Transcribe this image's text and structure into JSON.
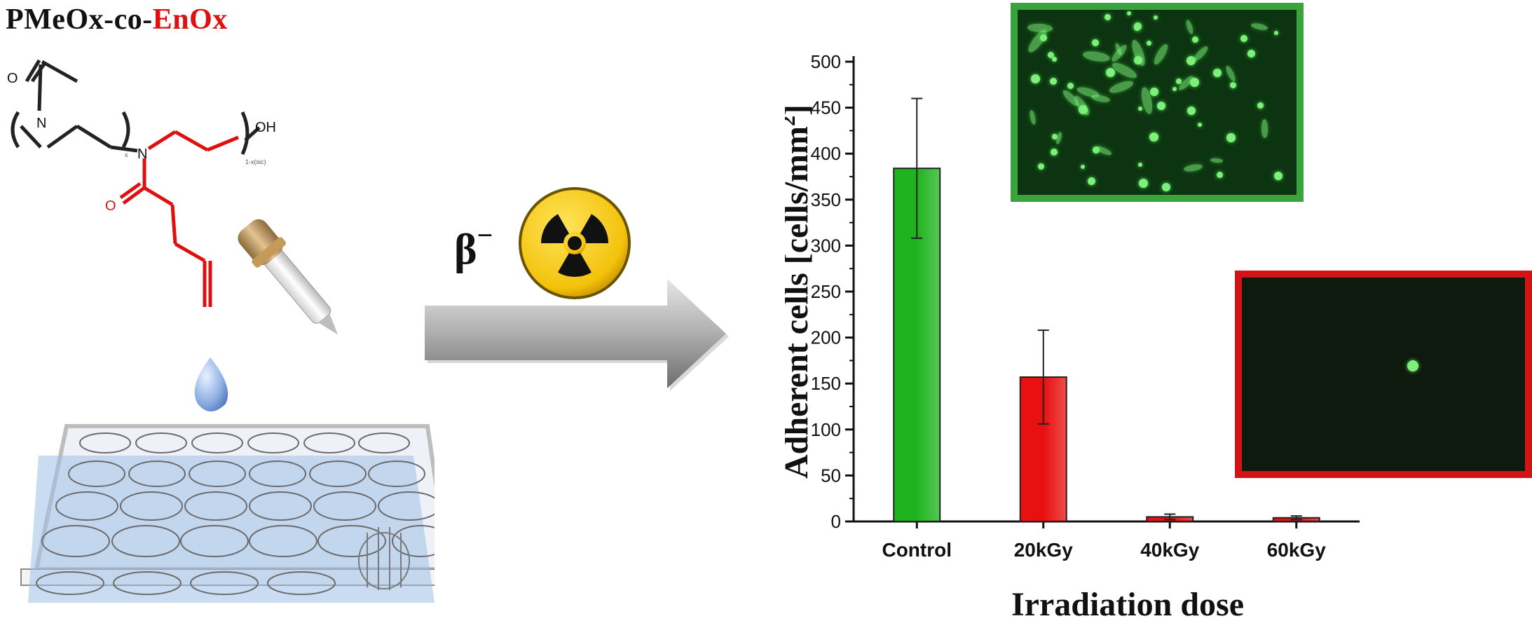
{
  "figure": {
    "polymer_label_prefix": "PMeOx-co-",
    "polymer_label_highlight": "EnOx",
    "radiation_label": "β",
    "radiation_superscript": "−",
    "structure_labels": {
      "o1": "O",
      "n1": "N",
      "o2": "O",
      "n2": "N",
      "oh": "OH",
      "sub1": "x",
      "sub2": "1-x(sic)"
    },
    "colors": {
      "polymer_red": "#e01010",
      "green_frame": "#3aa43c",
      "red_frame": "#d41414",
      "green_bar": "#1fb41f",
      "red_bar": "#e81010"
    }
  },
  "chart_data": {
    "type": "bar",
    "categories": [
      "Control",
      "20kGy",
      "40kGy",
      "60kGy"
    ],
    "values": [
      384,
      157,
      5,
      4
    ],
    "errors": [
      76,
      51,
      3,
      2
    ],
    "bar_colors": [
      "#1fb41f",
      "#e81010",
      "#e81010",
      "#e81010"
    ],
    "xlabel": "Irradiation dose",
    "ylabel_main": "Adherent cells [cells/mm",
    "ylabel_sup": "2",
    "ylabel_end": "]",
    "ylim": [
      0,
      500
    ],
    "yticks": [
      0,
      50,
      100,
      150,
      200,
      250,
      300,
      350,
      400,
      450,
      500
    ],
    "grid": false
  }
}
